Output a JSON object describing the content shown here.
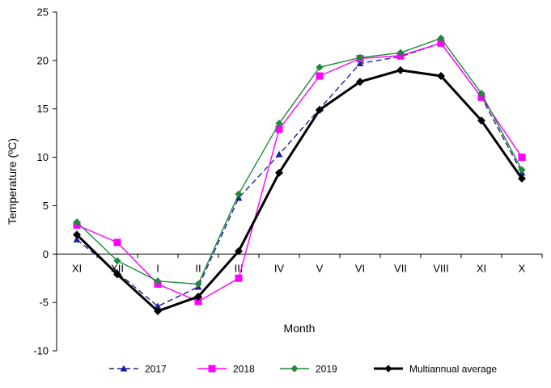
{
  "chart_data": {
    "type": "line",
    "xlabel": "Month",
    "ylabel": "Temperature (ºC)",
    "ylim": [
      -10,
      25
    ],
    "yticks": [
      -10,
      -5,
      0,
      5,
      10,
      15,
      20,
      25
    ],
    "categories": [
      "XI",
      "XII",
      "I",
      "II",
      "III",
      "IV",
      "V",
      "VI",
      "VII",
      "VIII",
      "XI",
      "X"
    ],
    "grid": false,
    "legend_position": "bottom",
    "series": [
      {
        "name": "2017",
        "color": "#1f1f9e",
        "dash": "dashed",
        "marker": "triangle",
        "values": [
          1.5,
          -1.9,
          -5.4,
          -3.4,
          5.8,
          10.3,
          15.0,
          19.7,
          20.4,
          21.8,
          16.2,
          8.4
        ]
      },
      {
        "name": "2018",
        "color": "#ff00ff",
        "dash": "solid",
        "marker": "square",
        "values": [
          3.0,
          1.2,
          -3.1,
          -4.9,
          -2.5,
          12.9,
          18.4,
          20.2,
          20.5,
          21.8,
          16.2,
          10.0
        ]
      },
      {
        "name": "2019",
        "color": "#1e8a3a",
        "dash": "solid",
        "marker": "diamond",
        "values": [
          3.3,
          -0.7,
          -2.8,
          -3.1,
          6.2,
          13.5,
          19.3,
          20.3,
          20.8,
          22.3,
          16.6,
          8.7
        ]
      },
      {
        "name": "Multiannual average",
        "color": "#000000",
        "dash": "solid",
        "marker": "diamond",
        "thick": true,
        "values": [
          2.0,
          -2.1,
          -5.9,
          -4.4,
          0.3,
          8.4,
          14.9,
          17.8,
          19.0,
          18.4,
          13.8,
          7.8
        ]
      }
    ]
  }
}
